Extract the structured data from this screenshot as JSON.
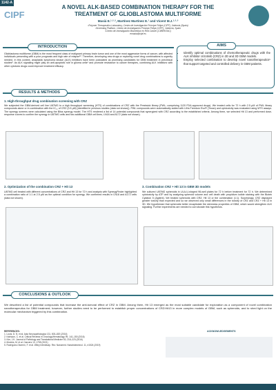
{
  "poster": {
    "tag": "1142-A",
    "logo": "CIPF",
    "title": "A NOVEL ALK-BASED COMBINATION THERAPY FOR THE TREATMENT OF GLIOBLASTOMA MULTIFORME",
    "authors": "Masiá E.¹·²·³, Martínez Martínez E.¹ and Vicent M.J.¹·²·³",
    "affiliations": [
      "¹Polymer Therapeutics Laboratory, Centro de Investigación Príncipe Felipe (CIPF), Valencia (Spain)",
      "²Screening Platform, Centro de Investigación Príncipe Felipe (CIPF), Valencia, Spain",
      "³Centro de Investigación Biomédica en Red Cáncer (CIBERONC)"
    ],
    "email": "emasia@cipf.es"
  },
  "introduction": {
    "heading": "INTRODUCTION",
    "text": "Glioblastoma multiforme (GBM) is the most frequent class of malignant primary brain tumor and one of the most aggressive forms of cancer, with affected individuals presenting with a poor prognosis and high rate of relapse¹². Therefore, developing new drugs or exploring novel drug combinations is urgently needed. In this context, anaplastic lymphoma kinase (ALK) inhibitors have been postulated as promising candidates for GBM treatment in preclinical studies³. As ALK signaling might play an anti-apoptotic role in glioma cells⁴ and promote resistance to cancer therapies, combining ALK inhibitors with other cytotoxic drugs could improve treatment efficacy."
  },
  "aims": {
    "heading": "AIMS",
    "items": [
      "Identify optimal combinations of chemotherapeutic drugs with the ALK inhibitor crizotinib (CRZ) in 2D and 3D GBM models.",
      "Employ selected combination to develop novel nanotherapeutics⁵ that support targeted and controlled delivery in GBM patients."
    ]
  },
  "results": {
    "heading": "RESULTS & METHODS",
    "sections": [
      {
        "title": "1. High-throughput drug combination screening with CRZ",
        "text": "We subjected the GBM-derived cell line U87MG to a high throughput screening (HTS) of combinations of CRZ with the Prestwick library (PWL; comprising 1120 FDA-approved drugs). We treated cells for 72 h with 2.5 μM of PWL library compounds alone or in combination with the IC₂₅ of CRZ (3.5 μM) (identified in previous studies (data not shown)). PWL compounds were automatically added with LiHa Freedom Evo® (Tecan) and cytotoxicity was evaluated using MTS assays. The synergy screens were calculated using the Bliss synergy model. The HTS rendered a list of 14 potential compounds that synergized with CRZ according to the established criteria. Among them, we selected Hit 13 and performed dose-response curves to confirm the synergy in U87MG cells and two additional GBM cell lines, LN18 and A172 (data not shown)."
      },
      {
        "title": "2. Optimization of the combination CRZ + Hit 13",
        "text": "U87MG cell treated with different concentrations of CRZ and Hit 13 for 72 h and analysis with SynergyFinder highlighted a combination ratio of 1:1 at 2.5 μM as the optimal condition for synergy. We confirmed results in LN18 and A172 cells (data not shown)."
      },
      {
        "title": "3. Combination CRZ + Hit 13 in GBM 3D models",
        "text": "We cultured U87MG spheroids in ULA-U-shaped 96-well plates for 72 h before treatment for 72 h. We determined cytotoxicity by ATP and by analyzing spheroid volume and cell death with propidium iodide staining with the Biotek Cytation 5 (Agilent). We treated spheroids with CRZ, Hit 13 or the combination (1:1). Surprisingly, CRZ displayed greater toxicity than expected and so we observed only small differences in the toxicity of CRZ and CRZ + Hit 13 in 3D. We hypothesize that spheroids better recapitulate the stemness properties of GBM, which would strengthen ALK signaling. Further experiments are needed to corroborate this hypothesis."
      }
    ]
  },
  "conclusions": {
    "heading": "CONCLUSIONS & OUTLOOK",
    "text": "We described a list of potential compounds that increase the anti-tumoral effect of CRZ in GBM. Among them, Hit 13 emerged as the most suitable candidate for exploration as a component of novel combination nanotherapeutics for GBM treatment; however, further studies need to be performed to establish proper concentrations of CRZ:Hit13 in more complex models of GBM, such as spheroids, and to shed light on the molecular mechanism triggered by this combination."
  },
  "footer": {
    "references_heading": "REFERENCES:",
    "references": [
      "1. Louis, D. N. et al. Acta Neuropathologica 131, 803–820 (2016)",
      "2. Karlsson, C. et al. Critical Reviews in Oncology/Hematology 99, 141–150 (2016)",
      "3. Kim, J.K. Journal of Pathology and Translational Medicine 50, 218–223 (2016)",
      "4. Moreira, M. et al. Cancers 13, 1755 (2021)",
      "5. Rodríguez-Otormín, F. et al. Wiley Interdiscip. Rev. Nanomed. Nanobiotechnol. 11, e1524 (2019)"
    ],
    "acknowledgements": "ACKNOWLEDGEMENTS"
  }
}
